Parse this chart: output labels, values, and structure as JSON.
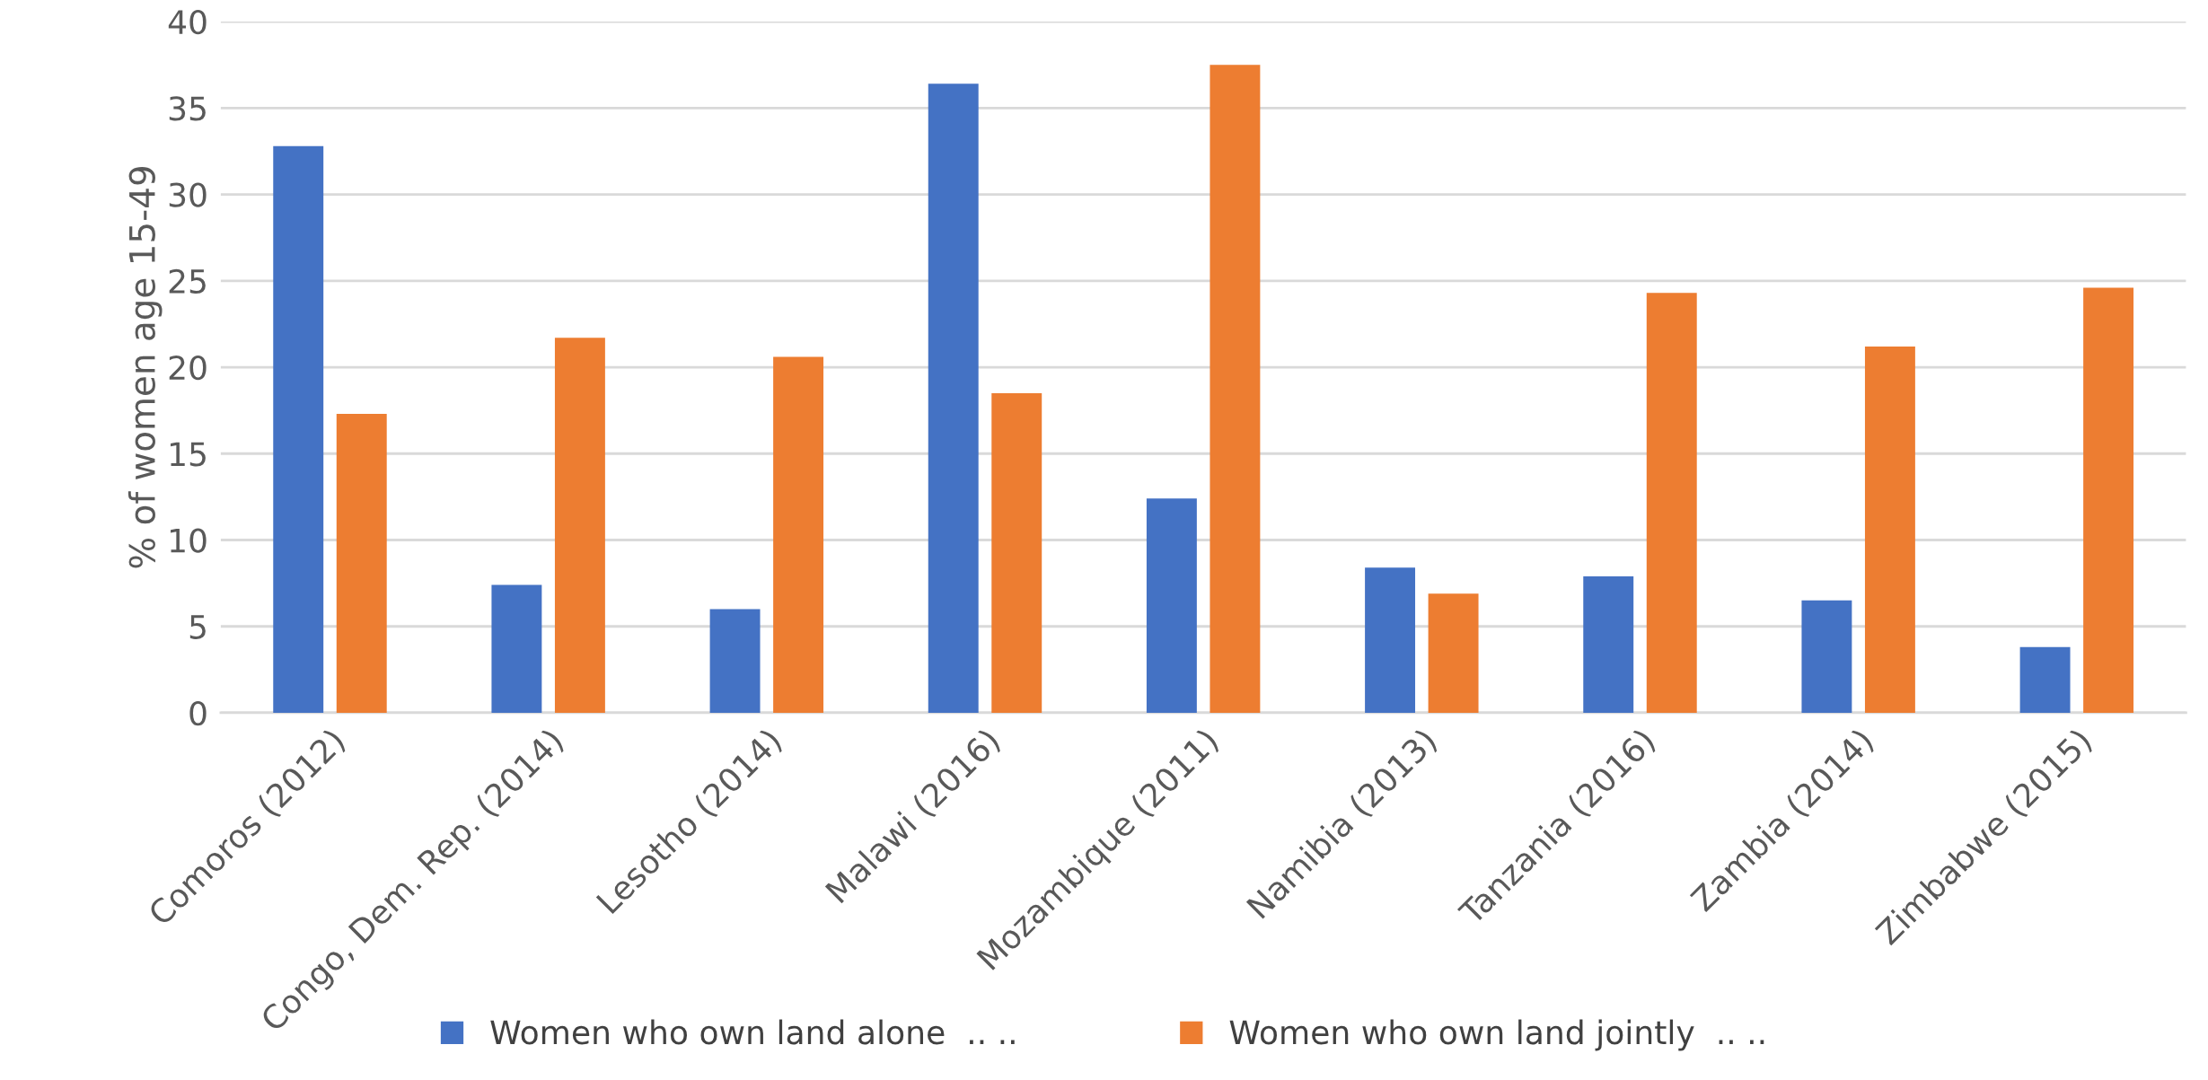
{
  "chart_data": {
    "type": "bar",
    "ylabel": "% of women age 15-49",
    "categories": [
      "Comoros (2012)",
      "Congo, Dem. Rep. (2014)",
      "Lesotho (2014)",
      "Malawi (2016)",
      "Mozambique (2011)",
      "Namibia (2013)",
      "Tanzania (2016)",
      "Zambia (2014)",
      "Zimbabwe (2015)"
    ],
    "series": [
      {
        "name": "Women who own land alone  .. ..",
        "color": "#4472c4",
        "values": [
          32.8,
          7.4,
          6.0,
          36.4,
          12.4,
          8.4,
          7.9,
          6.5,
          3.8
        ]
      },
      {
        "name": "Women who own land jointly  .. ..",
        "color": "#ed7d31",
        "values": [
          17.3,
          21.7,
          20.6,
          18.5,
          37.5,
          6.9,
          24.3,
          21.2,
          24.6
        ]
      }
    ],
    "ylim": [
      0,
      40
    ],
    "yticks": [
      0,
      5,
      10,
      15,
      20,
      25,
      30,
      35,
      40
    ],
    "grid": "y",
    "legend": "bottom"
  }
}
